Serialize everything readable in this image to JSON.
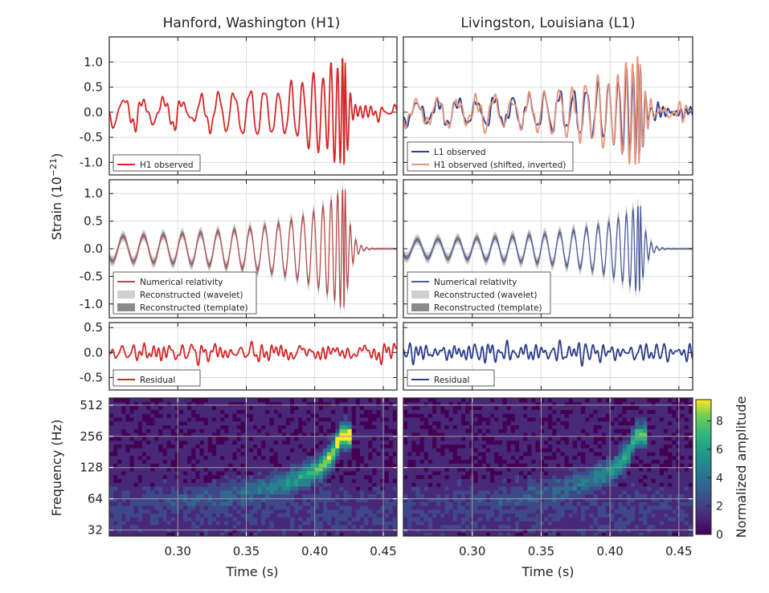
{
  "columns": [
    {
      "title": "Hanford, Washington (H1)"
    },
    {
      "title": "Livingston, Louisiana (L1)"
    }
  ],
  "shared_axes": {
    "strain_ylabel_main": "Strain (10",
    "strain_ylabel_exp": "−21",
    "strain_ylabel_close": ")",
    "time_label": "Time (s)",
    "freq_label": "Frequency (Hz)",
    "colorbar_label": "Normalized amplitude"
  },
  "colors": {
    "h1": "#d62728",
    "l1": "#2c3e8c",
    "h1_shifted": "#e8957b",
    "wavelet": "#cfcfcf",
    "template": "#8a8a8a",
    "nr_h1": "#b24a4a",
    "nr_l1": "#4a5a9a"
  },
  "chart_data": [
    {
      "type": "line",
      "panel": "H1 observed",
      "column": 0,
      "xlim": [
        0.25,
        0.46
      ],
      "ylim": [
        -1.25,
        1.5
      ],
      "yticks": [
        1.0,
        0.5,
        0.0,
        -0.5,
        -1.0
      ],
      "ytick_labels": [
        "1.0",
        "0.5",
        "0.0",
        "-0.5",
        "-1.0"
      ],
      "xticks": [
        0.3,
        0.35,
        0.4,
        0.45
      ],
      "grid": true,
      "legend_position": "lower-left",
      "series": [
        {
          "name": "H1 observed",
          "kind": "signal",
          "amp_peak": 1.12,
          "noise_amp": 0.15,
          "color_key": "h1"
        }
      ]
    },
    {
      "type": "line",
      "panel": "L1 observed",
      "column": 1,
      "xlim": [
        0.25,
        0.46
      ],
      "ylim": [
        -1.25,
        1.5
      ],
      "yticks": [
        1.0,
        0.5,
        0.0,
        -0.5,
        -1.0
      ],
      "xticks": [
        0.3,
        0.35,
        0.4,
        0.45
      ],
      "grid": true,
      "legend_position": "lower-left",
      "series": [
        {
          "name": "L1 observed",
          "kind": "signal",
          "amp_peak": 1.0,
          "noise_amp": 0.15,
          "color_key": "l1"
        },
        {
          "name": "H1 observed (shifted, inverted)",
          "kind": "signal",
          "amp_peak": 1.12,
          "noise_amp": 0.14,
          "color_key": "h1_shifted"
        }
      ]
    },
    {
      "type": "line",
      "panel": "H1 reconstruction",
      "column": 0,
      "xlim": [
        0.25,
        0.46
      ],
      "ylim": [
        -1.25,
        1.25
      ],
      "yticks": [
        1.0,
        0.5,
        0.0,
        -0.5,
        -1.0
      ],
      "ytick_labels": [
        "1.0",
        "0.5",
        "0.0",
        "-0.5",
        "-1.0"
      ],
      "xticks": [
        0.3,
        0.35,
        0.4,
        0.45
      ],
      "grid": true,
      "legend_position": "lower-left",
      "series": [
        {
          "name": "Reconstructed (wavelet)",
          "kind": "band",
          "width": 0.16,
          "color_key": "wavelet"
        },
        {
          "name": "Reconstructed (template)",
          "kind": "band",
          "width": 0.08,
          "color_key": "template"
        },
        {
          "name": "Numerical relativity",
          "kind": "chirp",
          "amp_peak": 1.18,
          "color_key": "nr_h1"
        }
      ]
    },
    {
      "type": "line",
      "panel": "L1 reconstruction",
      "column": 1,
      "xlim": [
        0.25,
        0.46
      ],
      "ylim": [
        -1.25,
        1.25
      ],
      "yticks": [
        1.0,
        0.5,
        0.0,
        -0.5,
        -1.0
      ],
      "xticks": [
        0.3,
        0.35,
        0.4,
        0.45
      ],
      "grid": true,
      "legend_position": "lower-left",
      "series": [
        {
          "name": "Reconstructed (wavelet)",
          "kind": "band",
          "width": 0.16,
          "color_key": "wavelet"
        },
        {
          "name": "Reconstructed (template)",
          "kind": "band",
          "width": 0.08,
          "color_key": "template"
        },
        {
          "name": "Numerical relativity",
          "kind": "chirp",
          "amp_peak": 0.85,
          "color_key": "nr_l1"
        }
      ]
    },
    {
      "type": "line",
      "panel": "H1 residual",
      "column": 0,
      "xlim": [
        0.25,
        0.46
      ],
      "ylim": [
        -0.75,
        0.6
      ],
      "yticks": [
        0.5,
        0.0,
        -0.5
      ],
      "ytick_labels": [
        "0.5",
        "0.0",
        "-0.5"
      ],
      "xticks": [
        0.3,
        0.35,
        0.4,
        0.45
      ],
      "grid": true,
      "legend_position": "lower-left",
      "series": [
        {
          "name": "Residual",
          "kind": "noise",
          "noise_amp": 0.22,
          "color_key": "h1"
        }
      ]
    },
    {
      "type": "line",
      "panel": "L1 residual",
      "column": 1,
      "xlim": [
        0.25,
        0.46
      ],
      "ylim": [
        -0.75,
        0.6
      ],
      "yticks": [
        0.5,
        0.0,
        -0.5
      ],
      "xticks": [
        0.3,
        0.35,
        0.4,
        0.45
      ],
      "grid": true,
      "legend_position": "lower-left",
      "series": [
        {
          "name": "Residual",
          "kind": "noise",
          "noise_amp": 0.2,
          "color_key": "l1"
        }
      ]
    },
    {
      "type": "heatmap",
      "panel": "H1 spectrogram",
      "column": 0,
      "xlim": [
        0.25,
        0.46
      ],
      "yscale": "log2",
      "ylim": [
        28,
        600
      ],
      "yticks": [
        32,
        64,
        128,
        256,
        512
      ],
      "ytick_labels": [
        "32",
        "64",
        "128",
        "256",
        "512"
      ],
      "xticks": [
        0.3,
        0.35,
        0.4,
        0.45
      ],
      "xtick_labels": [
        "0.30",
        "0.35",
        "0.40",
        "0.45"
      ],
      "grid": true,
      "peak_value": 8.6,
      "colormap": "viridis"
    },
    {
      "type": "heatmap",
      "panel": "L1 spectrogram",
      "column": 1,
      "xlim": [
        0.25,
        0.46
      ],
      "yscale": "log2",
      "ylim": [
        28,
        600
      ],
      "yticks": [
        32,
        64,
        128,
        256,
        512
      ],
      "xticks": [
        0.3,
        0.35,
        0.4,
        0.45
      ],
      "xtick_labels": [
        "0.30",
        "0.35",
        "0.40",
        "0.45"
      ],
      "grid": true,
      "peak_value": 6.2,
      "colormap": "viridis"
    }
  ],
  "colorbar": {
    "ticks": [
      0,
      2,
      4,
      6,
      8
    ],
    "tick_labels": [
      "0",
      "2",
      "4",
      "6",
      "8"
    ],
    "vmin": 0,
    "vmax": 9.5
  }
}
